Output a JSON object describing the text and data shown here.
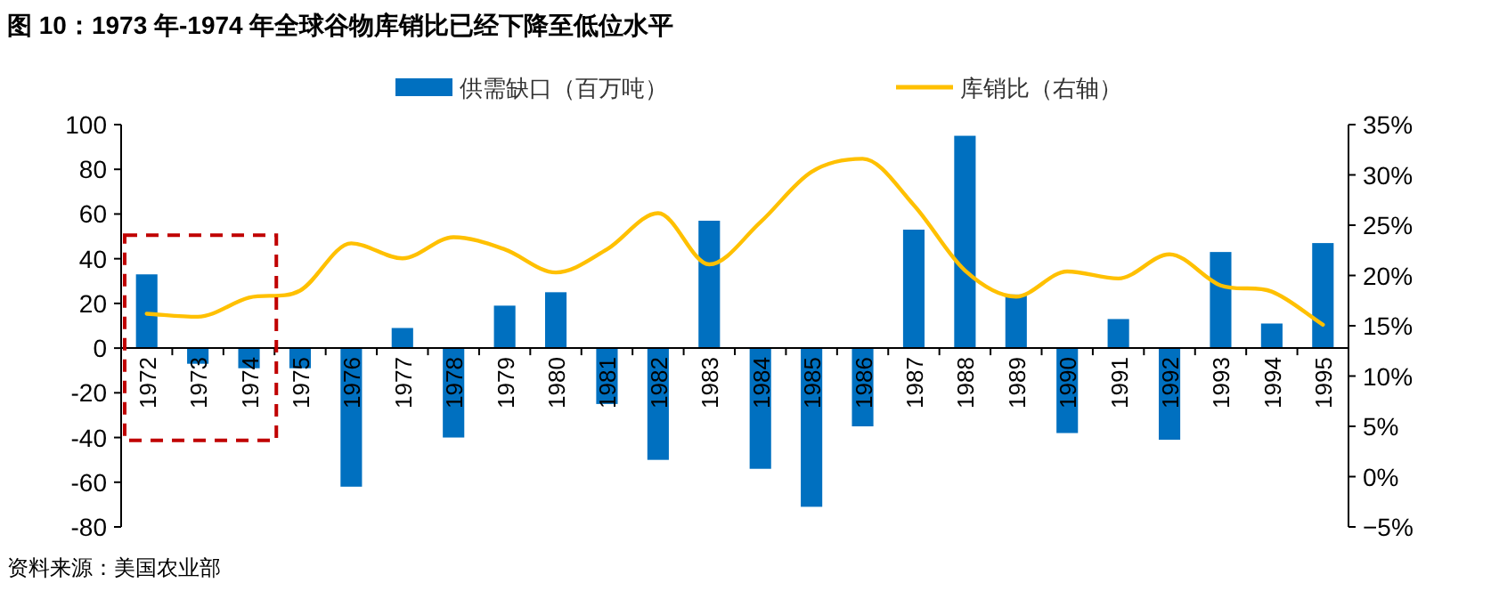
{
  "chart_data": {
    "type": "bar",
    "title": "图 10：1973 年-1974 年全球谷物库销比已经下降至低位水平",
    "categories": [
      "1972",
      "1973",
      "1974",
      "1975",
      "1976",
      "1977",
      "1978",
      "1979",
      "1980",
      "1981",
      "1982",
      "1983",
      "1984",
      "1985",
      "1986",
      "1987",
      "1988",
      "1989",
      "1990",
      "1991",
      "1992",
      "1993",
      "1994",
      "1995"
    ],
    "series": [
      {
        "name": "供需缺口（百万吨）",
        "color": "#0070c0",
        "values": [
          33,
          -7,
          -9,
          -9,
          -62,
          9,
          -40,
          19,
          25,
          -25,
          -50,
          57,
          -54,
          -71,
          -35,
          53,
          95,
          24,
          -38,
          13,
          -41,
          43,
          11,
          47
        ]
      },
      {
        "name": "库销比（右轴）",
        "type": "line",
        "axis": "y2",
        "color": "#ffc000",
        "values": [
          16.2,
          15.9,
          17.8,
          18.5,
          23.2,
          21.7,
          23.8,
          22.6,
          20.3,
          22.6,
          26.2,
          21.1,
          25.3,
          30.3,
          31.6,
          27.0,
          20.5,
          17.9,
          20.4,
          19.7,
          22.1,
          19.0,
          18.4,
          15.1
        ]
      }
    ],
    "ylim": [
      -80,
      100
    ],
    "yticks": [
      -80,
      -60,
      -40,
      -20,
      0,
      20,
      40,
      60,
      80,
      100
    ],
    "y2lim": [
      -5,
      35
    ],
    "y2ticks": [
      {
        "value": -5,
        "label": "−5%"
      },
      {
        "value": 0,
        "label": "0%"
      },
      {
        "value": 5,
        "label": "5%"
      },
      {
        "value": 10,
        "label": "10%"
      },
      {
        "value": 15,
        "label": "15%"
      },
      {
        "value": 20,
        "label": "20%"
      },
      {
        "value": 25,
        "label": "25%"
      },
      {
        "value": 30,
        "label": "30%"
      },
      {
        "value": 35,
        "label": "35%"
      }
    ],
    "legend": "top",
    "grid": false,
    "annotations": [
      "资料来源：美国农业部"
    ]
  }
}
